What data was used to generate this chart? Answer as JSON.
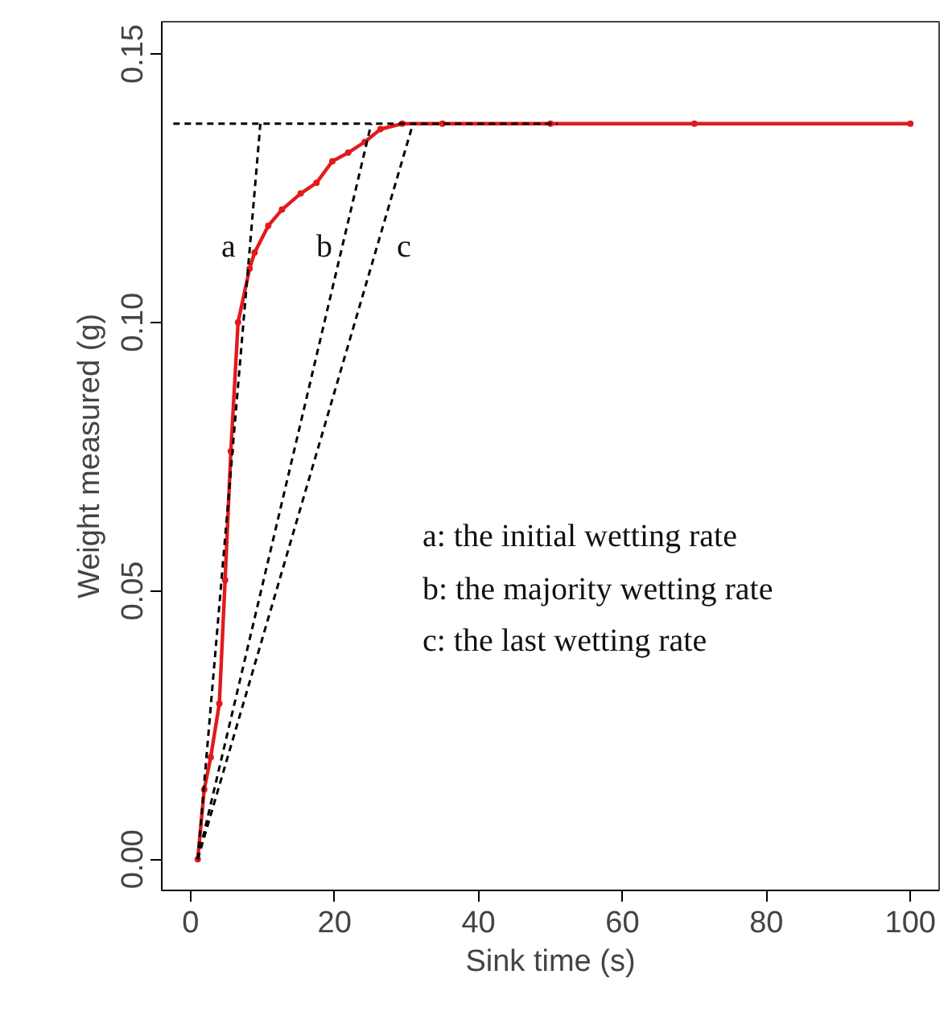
{
  "chart_data": {
    "type": "line",
    "xlabel": "Sink time (s)",
    "ylabel": "Weight measured (g)",
    "xlim": [
      -4,
      104
    ],
    "ylim": [
      -0.0058,
      0.156
    ],
    "xticks": [
      0,
      20,
      40,
      60,
      80,
      100
    ],
    "yticks": [
      {
        "value": 0,
        "label": "0.00"
      },
      {
        "value": 0.05,
        "label": "0.05"
      },
      {
        "value": 0.1,
        "label": "0.10"
      },
      {
        "value": 0.15,
        "label": "0.15"
      }
    ],
    "grid": false,
    "series": [
      {
        "color": "#e31a1c",
        "marker": "circle",
        "line_style": "solid",
        "x": [
          1,
          1.9,
          2.8,
          4.0,
          4.8,
          5.6,
          6.6,
          8.2,
          8.9,
          10.8,
          12.7,
          15.3,
          17.5,
          19.7,
          21.9,
          24.2,
          26.4,
          29.4,
          35,
          50,
          70,
          100
        ],
        "values": [
          0,
          0.013,
          0.019,
          0.029,
          0.052,
          0.076,
          0.1,
          0.11,
          0.113,
          0.118,
          0.121,
          0.124,
          0.126,
          0.13,
          0.1316,
          0.1336,
          0.136,
          0.137,
          0.137,
          0.137,
          0.137,
          0.137
        ]
      },
      {
        "color": "#000000",
        "marker": "none",
        "line_style": "dashed",
        "x": [
          -2.4,
          51
        ],
        "values": [
          0.137,
          0.137
        ]
      },
      {
        "color": "#000000",
        "marker": "none",
        "line_style": "dashed",
        "x": [
          1,
          9.7
        ],
        "values": [
          0,
          0.137
        ]
      },
      {
        "color": "#000000",
        "marker": "none",
        "line_style": "dashed",
        "x": [
          1,
          25.1
        ],
        "values": [
          0,
          0.137
        ]
      },
      {
        "color": "#000000",
        "marker": "none",
        "line_style": "dashed",
        "x": [
          1,
          30.9
        ],
        "values": [
          0,
          0.137
        ]
      }
    ],
    "annotations": [
      "a",
      "b",
      "c",
      "a: the initial wetting rate",
      "b: the majority wetting rate",
      "c: the last wetting rate"
    ]
  }
}
